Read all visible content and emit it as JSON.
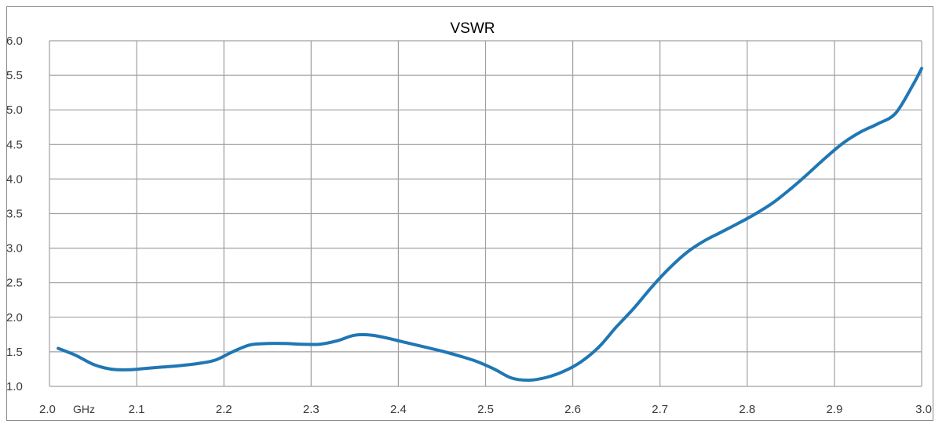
{
  "chart_data": {
    "type": "line",
    "title": "VSWR",
    "xlabel": "",
    "ylabel": "",
    "x_unit_label": "GHz",
    "xlim": [
      2.0,
      3.0
    ],
    "ylim": [
      1.0,
      6.0
    ],
    "x_ticks": [
      "2.0",
      "2.1",
      "2.2",
      "2.3",
      "2.4",
      "2.5",
      "2.6",
      "2.7",
      "2.8",
      "2.9",
      "3.0"
    ],
    "y_ticks": [
      "1.0",
      "1.5",
      "2.0",
      "2.5",
      "3.0",
      "3.5",
      "4.0",
      "4.5",
      "5.0",
      "5.5",
      "6.0"
    ],
    "grid": true,
    "line_color": "#1f77b4",
    "grid_color": "#a0a0a0",
    "series": [
      {
        "x": [
          2.01,
          2.03,
          2.05,
          2.07,
          2.09,
          2.11,
          2.13,
          2.15,
          2.17,
          2.19,
          2.21,
          2.23,
          2.25,
          2.27,
          2.29,
          2.31,
          2.33,
          2.35,
          2.37,
          2.39,
          2.41,
          2.43,
          2.45,
          2.47,
          2.49,
          2.51,
          2.53,
          2.55,
          2.57,
          2.59,
          2.61,
          2.63,
          2.65,
          2.67,
          2.69,
          2.71,
          2.73,
          2.75,
          2.77,
          2.79,
          2.81,
          2.83,
          2.85,
          2.87,
          2.89,
          2.91,
          2.93,
          2.95,
          2.97,
          2.99,
          3.0
        ],
        "y": [
          1.55,
          1.45,
          1.32,
          1.25,
          1.24,
          1.26,
          1.28,
          1.3,
          1.33,
          1.38,
          1.5,
          1.6,
          1.62,
          1.62,
          1.61,
          1.61,
          1.66,
          1.74,
          1.74,
          1.69,
          1.63,
          1.57,
          1.51,
          1.44,
          1.36,
          1.25,
          1.12,
          1.09,
          1.13,
          1.22,
          1.36,
          1.57,
          1.86,
          2.13,
          2.43,
          2.7,
          2.93,
          3.1,
          3.23,
          3.36,
          3.5,
          3.66,
          3.86,
          4.08,
          4.31,
          4.52,
          4.68,
          4.8,
          4.95,
          5.36,
          5.6
        ]
      }
    ]
  }
}
